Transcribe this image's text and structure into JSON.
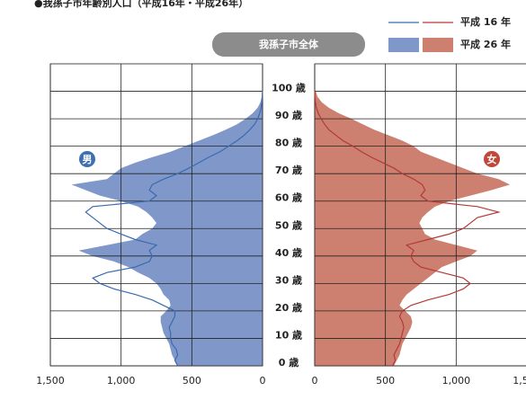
{
  "chart_data": {
    "type": "pyramid",
    "title": "●我孫子市年齢別人口（平成16年・平成26年）",
    "subtitle": "我孫子市全体",
    "y": [
      0,
      2,
      4,
      6,
      8,
      10,
      12,
      14,
      16,
      18,
      20,
      22,
      24,
      26,
      28,
      30,
      32,
      34,
      36,
      38,
      40,
      42,
      44,
      46,
      48,
      50,
      52,
      54,
      56,
      58,
      60,
      62,
      64,
      66,
      68,
      70,
      72,
      74,
      76,
      78,
      80,
      82,
      84,
      86,
      88,
      90,
      92,
      94,
      96,
      98,
      100
    ],
    "ylim": [
      0,
      110
    ],
    "yticks": [
      {
        "value": 0,
        "label": "0 歳"
      },
      {
        "value": 10,
        "label": "10 歳"
      },
      {
        "value": 20,
        "label": "20 歳"
      },
      {
        "value": 30,
        "label": "30 歳"
      },
      {
        "value": 40,
        "label": "40 歳"
      },
      {
        "value": 50,
        "label": "50 歳"
      },
      {
        "value": 60,
        "label": "60 歳"
      },
      {
        "value": 70,
        "label": "70 歳"
      },
      {
        "value": 80,
        "label": "80 歳"
      },
      {
        "value": 90,
        "label": "90 歳"
      },
      {
        "value": 100,
        "label": "100 歳"
      }
    ],
    "xlim": [
      0,
      1500
    ],
    "xticks": [
      0,
      500,
      {
        "value": 1000,
        "label": "1,000"
      },
      {
        "value": 1500,
        "label": "1,500"
      }
    ],
    "grid": true,
    "sides": [
      {
        "label": "男",
        "color": "#3f6fb3",
        "series": [
          {
            "name": "平成 16 年",
            "style": "line",
            "color": "#3a6aae",
            "values": [
              600,
              620,
              600,
              610,
              640,
              650,
              650,
              660,
              640,
              620,
              620,
              700,
              780,
              900,
              1050,
              1150,
              1200,
              1100,
              900,
              800,
              780,
              800,
              750,
              900,
              1000,
              1100,
              1150,
              1200,
              1250,
              1200,
              800,
              750,
              800,
              780,
              700,
              600,
              520,
              450,
              380,
              300,
              240,
              180,
              130,
              90,
              55,
              35,
              20,
              10,
              5,
              2,
              1
            ]
          },
          {
            "name": "平成 26 年",
            "style": "area",
            "color": "#8098c9",
            "values": [
              600,
              620,
              640,
              650,
              660,
              680,
              700,
              710,
              720,
              720,
              680,
              650,
              660,
              700,
              720,
              750,
              800,
              880,
              950,
              1050,
              1200,
              1300,
              1100,
              900,
              850,
              780,
              750,
              780,
              820,
              880,
              1000,
              1150,
              1250,
              1350,
              1100,
              1050,
              1000,
              900,
              780,
              650,
              550,
              450,
              350,
              260,
              180,
              120,
              70,
              35,
              15,
              6,
              2
            ]
          }
        ]
      },
      {
        "label": "女",
        "color": "#c0473a",
        "series": [
          {
            "name": "平成 16 年",
            "style": "line",
            "color": "#b23a36",
            "values": [
              550,
              570,
              560,
              580,
              600,
              610,
              620,
              630,
              620,
              600,
              620,
              680,
              800,
              950,
              1050,
              1100,
              1050,
              900,
              750,
              700,
              680,
              700,
              650,
              800,
              950,
              1050,
              1100,
              1150,
              1300,
              1150,
              800,
              750,
              780,
              760,
              700,
              620,
              560,
              480,
              400,
              330,
              270,
              200,
              150,
              100,
              70,
              45,
              25,
              12,
              5,
              2,
              1
            ]
          },
          {
            "name": "平成 26 年",
            "style": "area",
            "color": "#cd8070",
            "values": [
              560,
              580,
              600,
              610,
              620,
              640,
              660,
              680,
              690,
              680,
              640,
              600,
              620,
              650,
              700,
              750,
              800,
              850,
              900,
              1000,
              1100,
              1150,
              1000,
              850,
              780,
              760,
              740,
              760,
              800,
              850,
              950,
              1100,
              1250,
              1380,
              1300,
              1150,
              1050,
              950,
              850,
              750,
              700,
              620,
              520,
              420,
              340,
              260,
              170,
              100,
              50,
              20,
              8
            ]
          }
        ]
      }
    ]
  }
}
